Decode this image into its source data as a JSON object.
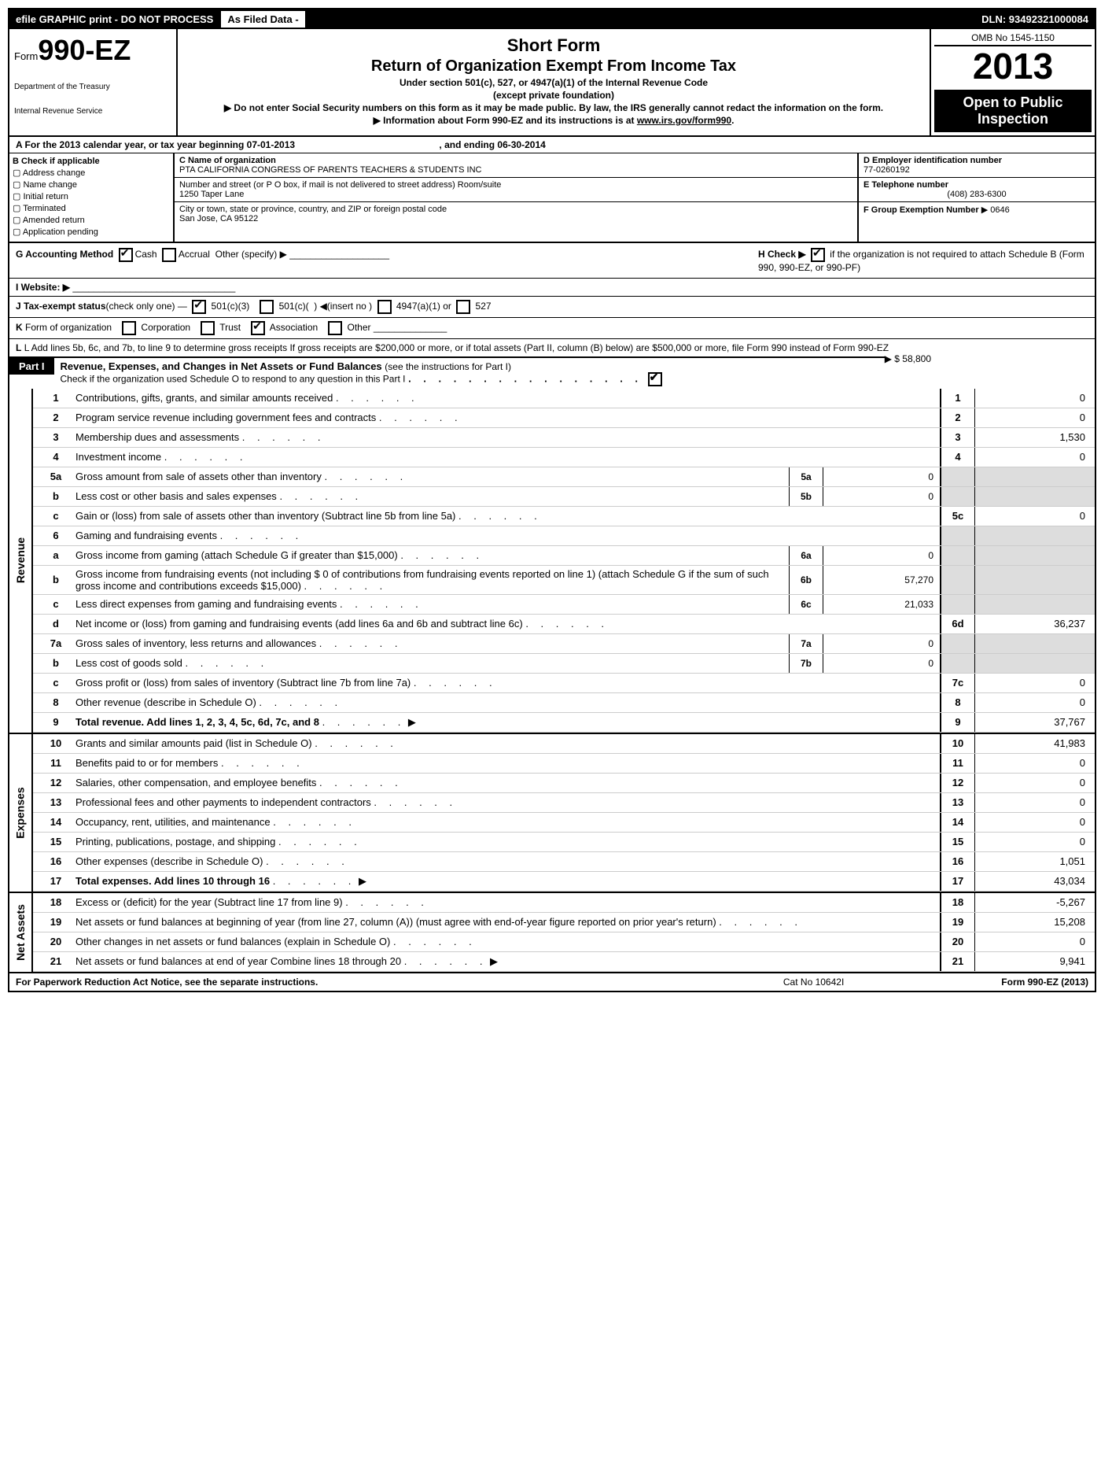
{
  "topbar": {
    "left": "efile GRAPHIC print - DO NOT PROCESS",
    "mid": "As Filed Data -",
    "dln": "DLN: 93492321000084"
  },
  "header": {
    "form_prefix": "Form",
    "form_num": "990-EZ",
    "dept": "Department of the Treasury",
    "irs": "Internal Revenue Service",
    "short": "Short Form",
    "title": "Return of Organization Exempt From Income Tax",
    "sub1": "Under section 501(c), 527, or 4947(a)(1) of the Internal Revenue Code",
    "sub1b": "(except private foundation)",
    "sub2": "▶ Do not enter Social Security numbers on this form as it may be made public. By law, the IRS generally cannot redact the information on the form.",
    "sub3_pre": "▶ Information about Form 990-EZ and its instructions is at ",
    "sub3_link": "www.irs.gov/form990",
    "sub3_post": ".",
    "omb": "OMB No  1545-1150",
    "year": "2013",
    "open": "Open to Public Inspection"
  },
  "rowA": {
    "text": "A  For the 2013 calendar year, or tax year beginning 07-01-2013",
    "end": ", and ending 06-30-2014"
  },
  "boxB": {
    "hdr": "B  Check if applicable",
    "items": [
      "Address change",
      "Name change",
      "Initial return",
      "Terminated",
      "Amended return",
      "Application pending"
    ]
  },
  "boxC": {
    "name_lbl": "C Name of organization",
    "name": "PTA CALIFORNIA CONGRESS OF PARENTS TEACHERS & STUDENTS INC",
    "addr_lbl": "Number and street (or P  O  box, if mail is not delivered to street address) Room/suite",
    "addr": "1250 Taper Lane",
    "city_lbl": "City or town, state or province, country, and ZIP or foreign postal code",
    "city": "San Jose, CA  95122"
  },
  "boxD": {
    "d_lbl": "D Employer identification number",
    "ein": "77-0260192",
    "e_lbl": "E Telephone number",
    "tel": "(408) 283-6300",
    "f_lbl": "F Group Exemption Number",
    "gen": "▶ 0646"
  },
  "rowG": {
    "g": "G Accounting Method",
    "cash": "Cash",
    "accrual": "Accrual",
    "other": "Other (specify) ▶",
    "h": "H  Check ▶",
    "h2": "if the organization is not required to attach Schedule B (Form 990, 990-EZ, or 990-PF)"
  },
  "rowI": "I Website: ▶",
  "rowJ": "J Tax-exempt status(check only one) —  501(c)(3)     501(c)(  ) ◀(insert no )   4947(a)(1) or    527",
  "rowK": "K Form of organization     Corporation     Trust     Association     Other",
  "rowL": "L Add lines 5b, 6c, and 7b, to line 9 to determine gross receipts  If gross receipts are $200,000 or more, or if total assets (Part II, column (B) below) are $500,000 or more, file Form 990 instead of Form 990-EZ",
  "rowL_amt": "▶ $ 58,800",
  "part1": {
    "tag": "Part I",
    "title": "Revenue, Expenses, and Changes in Net Assets or Fund Balances ",
    "sub": "(see the instructions for Part I)",
    "check": "Check if the organization used Schedule O to respond to any question in this Part I"
  },
  "sections": {
    "revenue": "Revenue",
    "expenses": "Expenses",
    "netassets": "Net Assets"
  },
  "lines": [
    {
      "n": "1",
      "d": "Contributions, gifts, grants, and similar amounts received",
      "rn": "1",
      "rv": "0"
    },
    {
      "n": "2",
      "d": "Program service revenue including government fees and contracts",
      "rn": "2",
      "rv": "0"
    },
    {
      "n": "3",
      "d": "Membership dues and assessments",
      "rn": "3",
      "rv": "1,530"
    },
    {
      "n": "4",
      "d": "Investment income",
      "rn": "4",
      "rv": "0"
    },
    {
      "n": "5a",
      "d": "Gross amount from sale of assets other than inventory",
      "sn": "5a",
      "sv": "0",
      "sh": true
    },
    {
      "n": "b",
      "d": "Less  cost or other basis and sales expenses",
      "sn": "5b",
      "sv": "0",
      "sh": true
    },
    {
      "n": "c",
      "d": "Gain or (loss) from sale of assets other than inventory (Subtract line 5b from line 5a)",
      "rn": "5c",
      "rv": "0"
    },
    {
      "n": "6",
      "d": "Gaming and fundraising events",
      "sh": true
    },
    {
      "n": "a",
      "d": "Gross income from gaming (attach Schedule G if greater than $15,000)",
      "sn": "6a",
      "sv": "0",
      "sh": true
    },
    {
      "n": "b",
      "d": "Gross income from fundraising events (not including $  0  of contributions from fundraising events reported on line 1) (attach Schedule G if the sum of such gross income and contributions exceeds $15,000)",
      "sn": "6b",
      "sv": "57,270",
      "sh": true
    },
    {
      "n": "c",
      "d": "Less  direct expenses from gaming and fundraising events",
      "sn": "6c",
      "sv": "21,033",
      "sh": true
    },
    {
      "n": "d",
      "d": "Net income or (loss) from gaming and fundraising events (add lines 6a and 6b and subtract line 6c)",
      "rn": "6d",
      "rv": "36,237"
    },
    {
      "n": "7a",
      "d": "Gross sales of inventory, less returns and allowances",
      "sn": "7a",
      "sv": "0",
      "sh": true
    },
    {
      "n": "b",
      "d": "Less  cost of goods sold",
      "sn": "7b",
      "sv": "0",
      "sh": true
    },
    {
      "n": "c",
      "d": "Gross profit or (loss) from sales of inventory (Subtract line 7b from line 7a)",
      "rn": "7c",
      "rv": "0"
    },
    {
      "n": "8",
      "d": "Other revenue (describe in Schedule O)",
      "rn": "8",
      "rv": "0"
    },
    {
      "n": "9",
      "d": "Total revenue. Add lines 1, 2, 3, 4, 5c, 6d, 7c, and 8",
      "rn": "9",
      "rv": "37,767",
      "bold": true,
      "arrow": true
    }
  ],
  "exp": [
    {
      "n": "10",
      "d": "Grants and similar amounts paid (list in Schedule O)",
      "rn": "10",
      "rv": "41,983"
    },
    {
      "n": "11",
      "d": "Benefits paid to or for members",
      "rn": "11",
      "rv": "0"
    },
    {
      "n": "12",
      "d": "Salaries, other compensation, and employee benefits",
      "rn": "12",
      "rv": "0"
    },
    {
      "n": "13",
      "d": "Professional fees and other payments to independent contractors",
      "rn": "13",
      "rv": "0"
    },
    {
      "n": "14",
      "d": "Occupancy, rent, utilities, and maintenance",
      "rn": "14",
      "rv": "0"
    },
    {
      "n": "15",
      "d": "Printing, publications, postage, and shipping",
      "rn": "15",
      "rv": "0"
    },
    {
      "n": "16",
      "d": "Other expenses (describe in Schedule O)",
      "rn": "16",
      "rv": "1,051"
    },
    {
      "n": "17",
      "d": "Total expenses. Add lines 10 through 16",
      "rn": "17",
      "rv": "43,034",
      "bold": true,
      "arrow": true
    }
  ],
  "net": [
    {
      "n": "18",
      "d": "Excess or (deficit) for the year (Subtract line 17 from line 9)",
      "rn": "18",
      "rv": "-5,267"
    },
    {
      "n": "19",
      "d": "Net assets or fund balances at beginning of year (from line 27, column (A)) (must agree with end-of-year figure reported on prior year's return)",
      "rn": "19",
      "rv": "15,208"
    },
    {
      "n": "20",
      "d": "Other changes in net assets or fund balances (explain in Schedule O)",
      "rn": "20",
      "rv": "0"
    },
    {
      "n": "21",
      "d": "Net assets or fund balances at end of year  Combine lines 18 through 20",
      "rn": "21",
      "rv": "9,941",
      "arrow": true
    }
  ],
  "footer": {
    "l": "For Paperwork Reduction Act Notice, see the separate instructions.",
    "m": "Cat No  10642I",
    "r": "Form 990-EZ (2013)"
  }
}
